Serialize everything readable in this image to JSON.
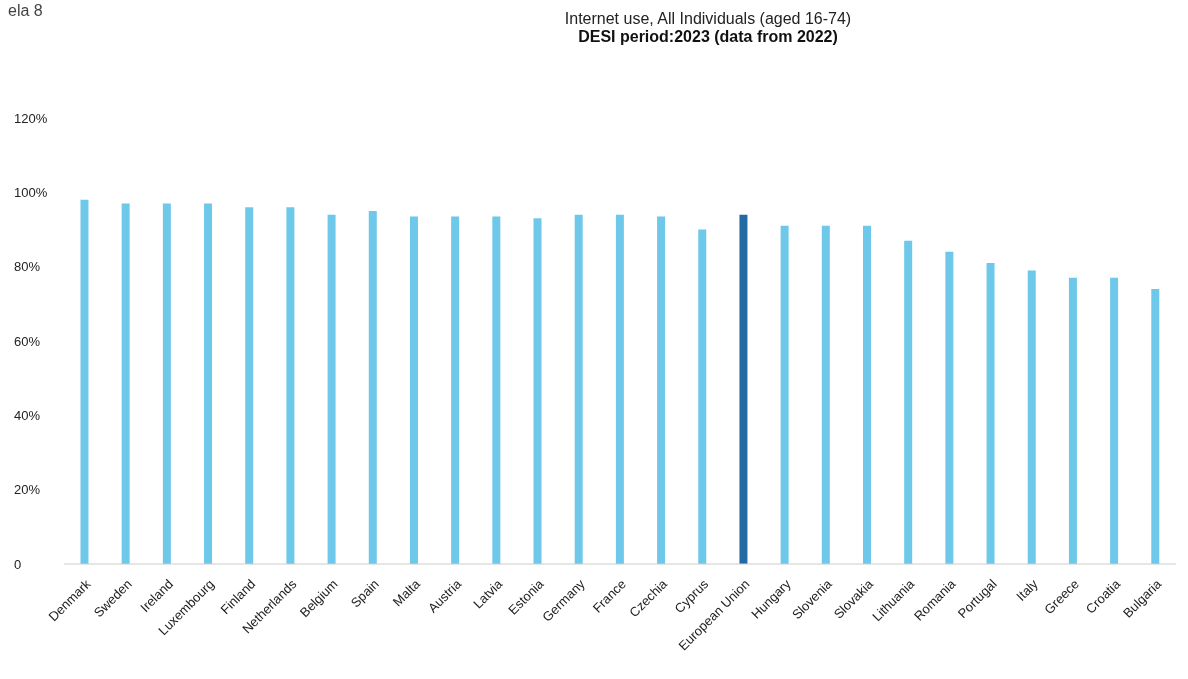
{
  "chart_data": {
    "type": "bar",
    "title": "Internet use, All Individuals (aged 16-74)",
    "subtitle": "DESI period:2023 (data from 2022)",
    "annotations": [
      "ela 8"
    ],
    "categories": [
      "Denmark",
      "Sweden",
      "Ireland",
      "Luxembourg",
      "Finland",
      "Netherlands",
      "Belgium",
      "Spain",
      "Malta",
      "Austria",
      "Latvia",
      "Estonia",
      "Germany",
      "France",
      "Czechia",
      "Cyprus",
      "European Union",
      "Hungary",
      "Slovenia",
      "Slovakia",
      "Lithuania",
      "Romania",
      "Portugal",
      "Italy",
      "Greece",
      "Croatia",
      "Bulgaria"
    ],
    "values": [
      98,
      97,
      97,
      97,
      96,
      96,
      94,
      95,
      93.5,
      93.5,
      93.5,
      93,
      94,
      94,
      93.5,
      90,
      94,
      91,
      91,
      91,
      87,
      84,
      81,
      79,
      77,
      77,
      74
    ],
    "colors": [
      "#6ec8ea",
      "#6ec8ea",
      "#6ec8ea",
      "#6ec8ea",
      "#6ec8ea",
      "#6ec8ea",
      "#6ec8ea",
      "#6ec8ea",
      "#6ec8ea",
      "#6ec8ea",
      "#6ec8ea",
      "#6ec8ea",
      "#6ec8ea",
      "#6ec8ea",
      "#6ec8ea",
      "#6ec8ea",
      "#2369a3",
      "#6ec8ea",
      "#6ec8ea",
      "#6ec8ea",
      "#6ec8ea",
      "#6ec8ea",
      "#6ec8ea",
      "#6ec8ea",
      "#6ec8ea",
      "#6ec8ea",
      "#6ec8ea"
    ],
    "ylim": [
      0,
      120
    ],
    "yticks": [
      0,
      {
        "value": 20,
        "label": "20%"
      },
      {
        "value": 40,
        "label": "40%"
      },
      {
        "value": 60,
        "label": "60%"
      },
      {
        "value": 80,
        "label": "80%"
      },
      {
        "value": 100,
        "label": "100%"
      },
      {
        "value": 120,
        "label": "120%"
      }
    ]
  }
}
